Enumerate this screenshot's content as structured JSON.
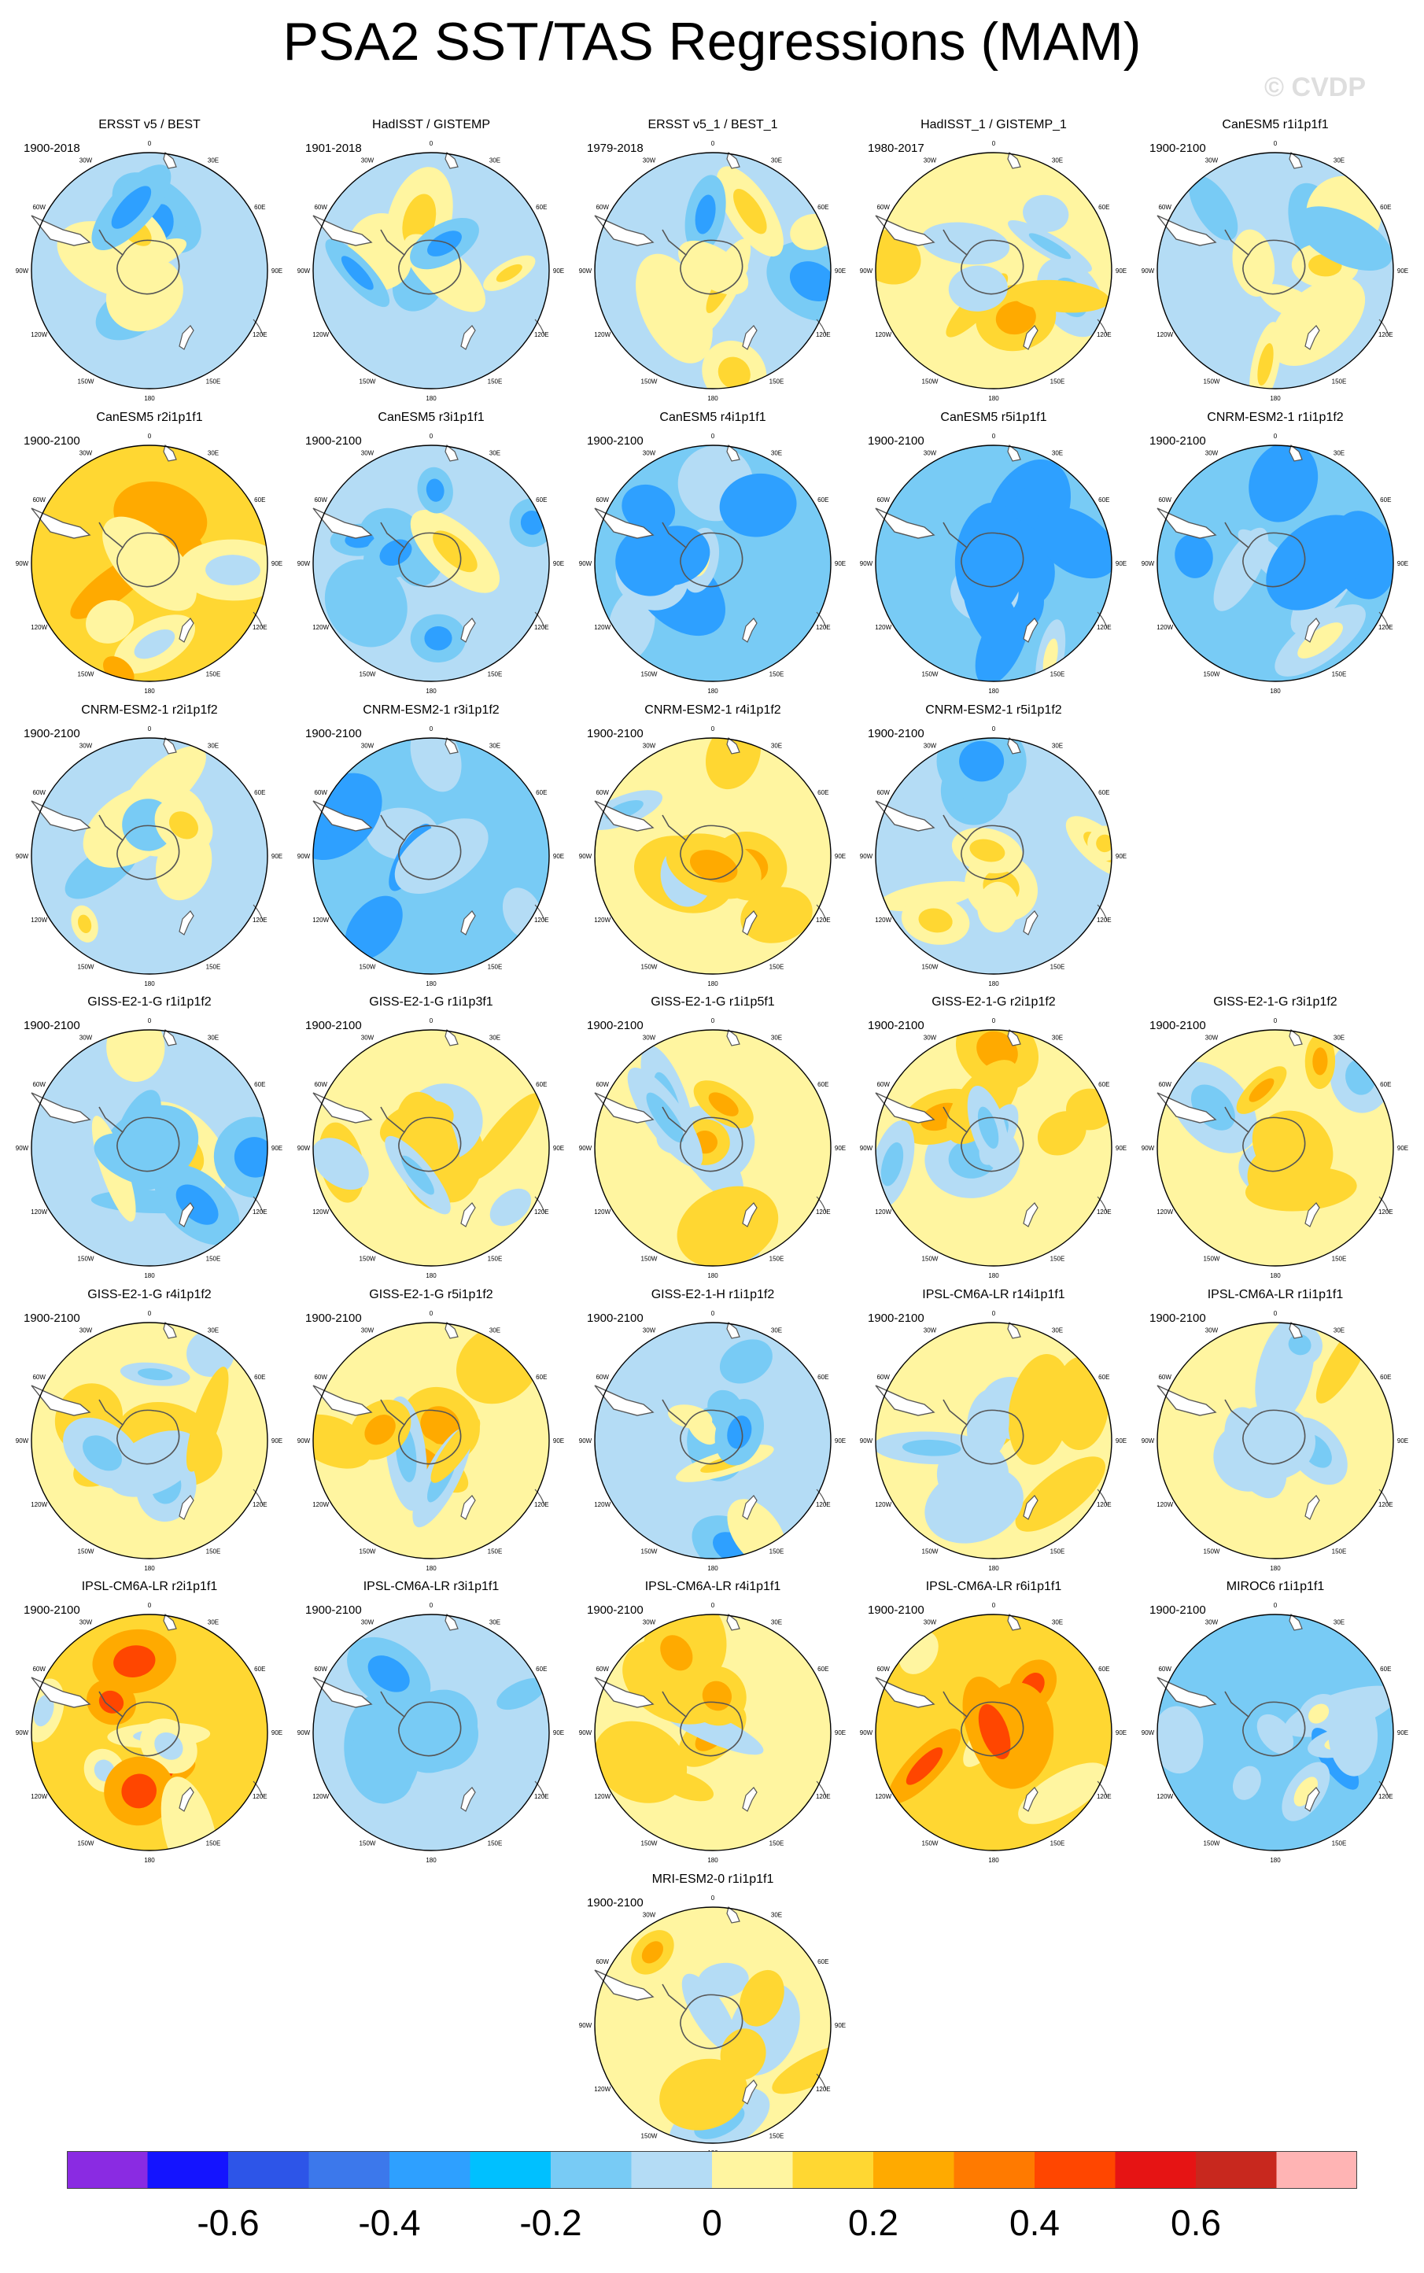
{
  "title": "PSA2 SST/TAS Regressions (MAM)",
  "watermark": "© CVDP",
  "lon_labels": [
    "0",
    "30E",
    "60E",
    "90E",
    "120E",
    "150E",
    "180",
    "150W",
    "120W",
    "90W",
    "60W",
    "30W"
  ],
  "colorbar": {
    "colors": [
      "#8a2be2",
      "#1414ff",
      "#2d55e8",
      "#3c78eb",
      "#2ea0ff",
      "#00c0ff",
      "#78cbf5",
      "#b4dcf5",
      "#fff5a0",
      "#ffd732",
      "#ffaa00",
      "#ff7a00",
      "#ff4600",
      "#e61414",
      "#c8281e",
      "#ffb4b4"
    ],
    "tick_labels": [
      "-0.6",
      "-0.4",
      "-0.2",
      "0",
      "0.2",
      "0.4",
      "0.6"
    ]
  },
  "panels": [
    {
      "title": "ERSST v5 / BEST",
      "period": "1900-2018",
      "base": 0
    },
    {
      "title": "HadISST / GISTEMP",
      "period": "1901-2018",
      "base": 0
    },
    {
      "title": "ERSST v5_1 / BEST_1",
      "period": "1979-2018",
      "base": 0
    },
    {
      "title": "HadISST_1 / GISTEMP_1",
      "period": "1980-2017",
      "base": 1
    },
    {
      "title": "CanESM5 r1i1p1f1",
      "period": "1900-2100",
      "base": 0
    },
    {
      "title": "CanESM5 r2i1p1f1",
      "period": "1900-2100",
      "base": 2
    },
    {
      "title": "CanESM5 r3i1p1f1",
      "period": "1900-2100",
      "base": 0
    },
    {
      "title": "CanESM5 r4i1p1f1",
      "period": "1900-2100",
      "base": -1
    },
    {
      "title": "CanESM5 r5i1p1f1",
      "period": "1900-2100",
      "base": -1
    },
    {
      "title": "CNRM-ESM2-1 r1i1p1f2",
      "period": "1900-2100",
      "base": -1
    },
    {
      "title": "CNRM-ESM2-1 r2i1p1f2",
      "period": "1900-2100",
      "base": 0
    },
    {
      "title": "CNRM-ESM2-1 r3i1p1f2",
      "period": "1900-2100",
      "base": -1
    },
    {
      "title": "CNRM-ESM2-1 r4i1p1f2",
      "period": "1900-2100",
      "base": 1
    },
    {
      "title": "CNRM-ESM2-1 r5i1p1f2",
      "period": "1900-2100",
      "base": 0
    },
    {
      "title": "GISS-E2-1-G r1i1p1f2",
      "period": "1900-2100",
      "base": 0
    },
    {
      "title": "GISS-E2-1-G r1i1p3f1",
      "period": "1900-2100",
      "base": 1
    },
    {
      "title": "GISS-E2-1-G r1i1p5f1",
      "period": "1900-2100",
      "base": 1
    },
    {
      "title": "GISS-E2-1-G r2i1p1f2",
      "period": "1900-2100",
      "base": 1
    },
    {
      "title": "GISS-E2-1-G r3i1p1f2",
      "period": "1900-2100",
      "base": 1
    },
    {
      "title": "GISS-E2-1-G r4i1p1f2",
      "period": "1900-2100",
      "base": 1
    },
    {
      "title": "GISS-E2-1-G r5i1p1f2",
      "period": "1900-2100",
      "base": 1
    },
    {
      "title": "GISS-E2-1-H r1i1p1f2",
      "period": "1900-2100",
      "base": 0
    },
    {
      "title": "IPSL-CM6A-LR r14i1p1f1",
      "period": "1900-2100",
      "base": 1
    },
    {
      "title": "IPSL-CM6A-LR r1i1p1f1",
      "period": "1900-2100",
      "base": 1
    },
    {
      "title": "IPSL-CM6A-LR r2i1p1f1",
      "period": "1900-2100",
      "base": 2
    },
    {
      "title": "IPSL-CM6A-LR r3i1p1f1",
      "period": "1900-2100",
      "base": 0
    },
    {
      "title": "IPSL-CM6A-LR r4i1p1f1",
      "period": "1900-2100",
      "base": 1
    },
    {
      "title": "IPSL-CM6A-LR r6i1p1f1",
      "period": "1900-2100",
      "base": 2
    },
    {
      "title": "MIROC6 r1i1p1f1",
      "period": "1900-2100",
      "base": -1
    },
    {
      "title": "MRI-ESM2-0 r1i1p1f1",
      "period": "1900-2100",
      "base": 1
    }
  ]
}
